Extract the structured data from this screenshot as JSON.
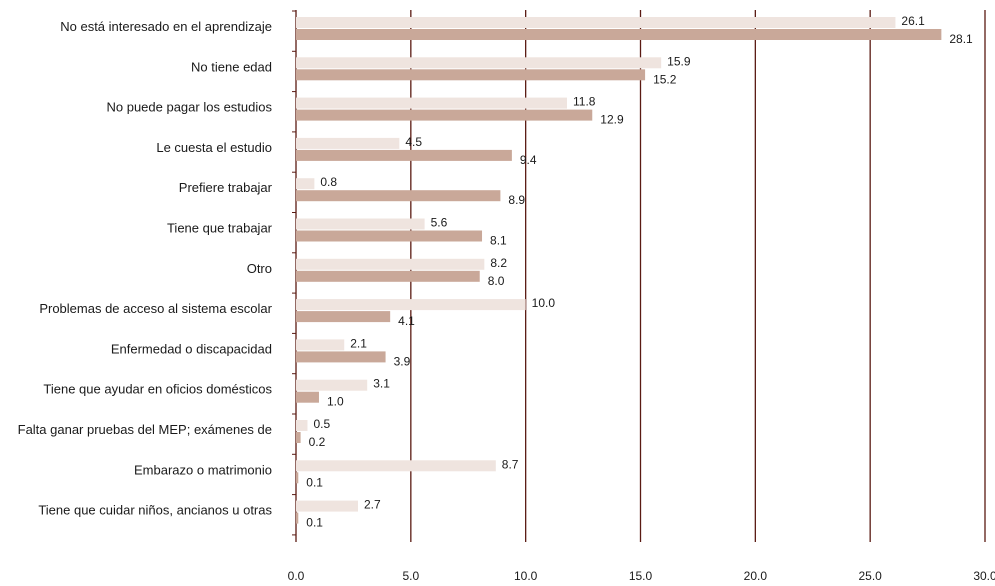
{
  "chart_data": {
    "type": "bar",
    "orientation": "horizontal",
    "title": "",
    "xlabel": "",
    "ylabel": "",
    "xlim": [
      0,
      30
    ],
    "x_ticks": [
      "0.0",
      "5.0",
      "10.0",
      "15.0",
      "20.0",
      "25.0",
      "30.0"
    ],
    "grid": true,
    "legend": "none",
    "categories": [
      "No está interesado en el aprendizaje",
      "No tiene edad",
      "No puede pagar los estudios",
      "Le cuesta el estudio",
      "Prefiere trabajar",
      "Tiene que trabajar",
      "Otro",
      "Problemas de acceso al sistema escolar",
      "Enfermedad o discapacidad",
      "Tiene que ayudar en oficios domésticos",
      "Falta ganar pruebas del MEP; exámenes de",
      "Embarazo o matrimonio",
      "Tiene que cuidar niños, ancianos u otras"
    ],
    "series": [
      {
        "color": "#efe4df",
        "values": [
          26.1,
          15.9,
          11.8,
          4.5,
          0.8,
          5.6,
          8.2,
          10.0,
          2.1,
          3.1,
          0.5,
          8.7,
          2.7
        ],
        "value_labels": [
          "26.1",
          "15.9",
          "11.8",
          "4.5",
          "0.8",
          "5.6",
          "8.2",
          "10.0",
          "2.1",
          "3.1",
          "0.5",
          "8.7",
          "2.7"
        ]
      },
      {
        "color": "#c9a899",
        "values": [
          28.1,
          15.2,
          12.9,
          9.4,
          8.9,
          8.1,
          8.0,
          4.1,
          3.9,
          1.0,
          0.2,
          0.1,
          0.1
        ],
        "value_labels": [
          "28.1",
          "15.2",
          "12.9",
          "9.4",
          "8.9",
          "8.1",
          "8.0",
          "4.1",
          "3.9",
          "1.0",
          "0.2",
          "0.1",
          "0.1"
        ]
      }
    ],
    "gridline_color": "#5a1a12"
  }
}
